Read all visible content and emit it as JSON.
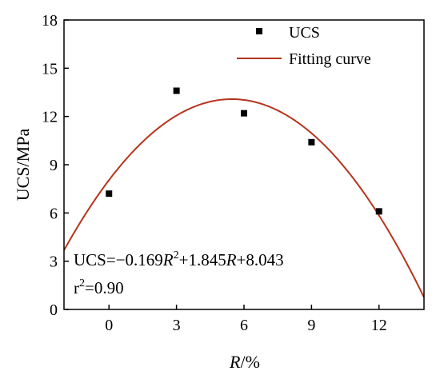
{
  "chart_data": {
    "type": "scatter",
    "title": "",
    "xlabel_italic": "R",
    "xlabel_unit": "/%",
    "ylabel": "UCS/MPa",
    "xlim": [
      -2,
      14
    ],
    "ylim": [
      0,
      18
    ],
    "xticks": [
      0,
      3,
      6,
      9,
      12
    ],
    "yticks": [
      0,
      3,
      6,
      9,
      12,
      15,
      18
    ],
    "grid": false,
    "legend_position": "top-right",
    "series": [
      {
        "name": "UCS",
        "kind": "scatter",
        "color": "#000000",
        "x": [
          0,
          3,
          6,
          9,
          12
        ],
        "y": [
          7.2,
          13.6,
          12.2,
          10.4,
          6.1
        ]
      },
      {
        "name": "Fitting curve",
        "kind": "line",
        "color": "#b5341c",
        "coefficients": {
          "a": -0.169,
          "b": 1.845,
          "c": 8.043
        }
      }
    ],
    "annotations": {
      "eq_prefix": "UCS=−0.169",
      "eq_var1": "R",
      "eq_exp": "2",
      "eq_middle": "+1.845",
      "eq_var2": "R",
      "eq_suffix": "+8.043",
      "r2_base": "r",
      "r2_exp": "2",
      "r2_value": "=0.90"
    }
  }
}
